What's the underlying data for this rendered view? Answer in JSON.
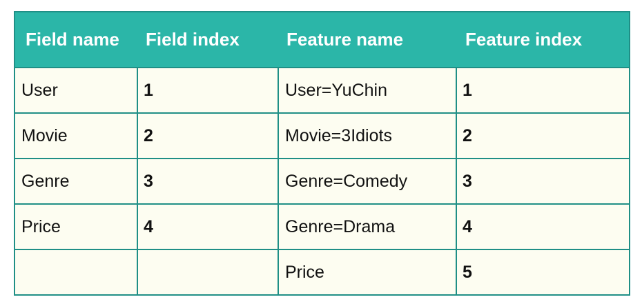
{
  "table": {
    "headers": [
      "Field name",
      "Field index",
      "Feature name",
      "Feature index"
    ],
    "rows": [
      [
        "User",
        "1",
        "User=YuChin",
        "1"
      ],
      [
        "Movie",
        "2",
        "Movie=3Idiots",
        "2"
      ],
      [
        "Genre",
        "3",
        "Genre=Comedy",
        "3"
      ],
      [
        "Price",
        "4",
        "Genre=Drama",
        "4"
      ],
      [
        "",
        "",
        "Price",
        "5"
      ]
    ]
  },
  "colors": {
    "header_background": "#2bb6a8",
    "header_text": "#ffffff",
    "cell_background": "#fdfdf1",
    "border": "#1f8f86"
  }
}
